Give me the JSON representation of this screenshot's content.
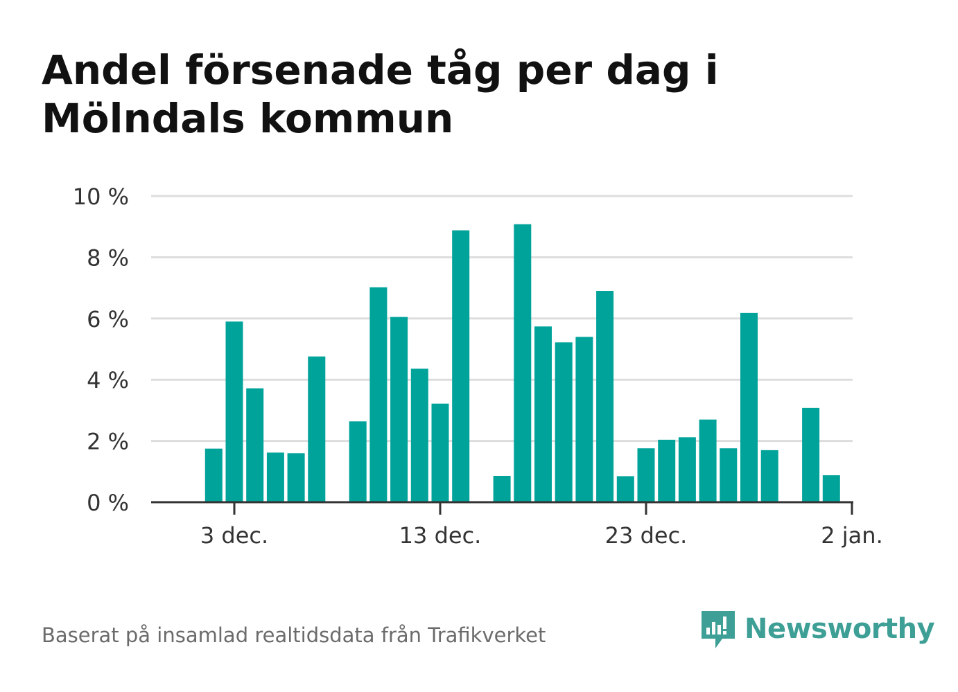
{
  "title": "Andel försenade tåg per dag i Mölndals kommun",
  "source": "Baserat på insamlad realtidsdata från Trafikverket",
  "brand": {
    "name": "Newsworthy",
    "color": "#3d9f95",
    "icon": "newsworthy-logo-icon"
  },
  "colors": {
    "bar": "#00a39a",
    "grid": "#dddddd",
    "axis": "#333333"
  },
  "chart_data": {
    "type": "bar",
    "title": "Andel försenade tåg per dag i Mölndals kommun",
    "xlabel": "",
    "ylabel": "",
    "x_ticks": [
      "3 dec.",
      "13 dec.",
      "23 dec.",
      "2 jan."
    ],
    "x_tick_days": [
      3,
      13,
      23,
      33
    ],
    "y_ticks": [
      "0 %",
      "2 %",
      "4 %",
      "6 %",
      "8 %",
      "10 %"
    ],
    "y_tick_values": [
      0,
      2,
      4,
      6,
      8,
      10
    ],
    "ylim": [
      0,
      10
    ],
    "grid": true,
    "x": [
      2,
      3,
      4,
      5,
      6,
      7,
      9,
      10,
      11,
      12,
      13,
      14,
      16,
      17,
      18,
      19,
      20,
      21,
      22,
      23,
      24,
      25,
      26,
      27,
      28,
      29,
      30,
      31,
      32
    ],
    "values": [
      1.75,
      5.9,
      3.72,
      1.62,
      1.6,
      4.76,
      2.64,
      7.02,
      6.05,
      4.36,
      3.22,
      8.88,
      0.86,
      9.08,
      5.74,
      5.22,
      5.4,
      6.9,
      0.85,
      1.76,
      2.04,
      2.12,
      2.7,
      1.76,
      6.18,
      1.7,
      null,
      3.08,
      0.88
    ],
    "value_unit": "%"
  }
}
